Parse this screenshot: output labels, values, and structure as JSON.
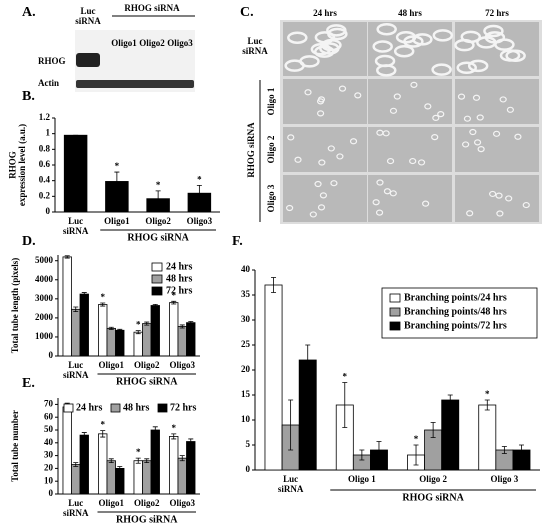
{
  "panel_labels": [
    "A.",
    "B.",
    "C.",
    "D.",
    "E.",
    "F."
  ],
  "blot": {
    "lanes": [
      "Luc siRNA",
      "Oligo1",
      "Oligo2",
      "Oligo3"
    ],
    "group": "RHOG siRNA",
    "rows": [
      "RHOG",
      "Actin"
    ]
  },
  "micrographs": {
    "columns": [
      "24 hrs",
      "48 hrs",
      "72 hrs"
    ],
    "rows": [
      "Luc siRNA",
      "Oligo 1",
      "Oligo 2",
      "Oligo 3"
    ],
    "group": "RHOG siRNA"
  },
  "chart_data": [
    {
      "type": "bar",
      "y_label": "RHOG expression level (a.u.)",
      "categories": [
        "Luc siRNA",
        "Oligo1",
        "Oligo2",
        "Oligo3"
      ],
      "group_label": "RHOG siRNA",
      "values": [
        0.98,
        0.39,
        0.17,
        0.24
      ],
      "errors": [
        0,
        0.12,
        0.1,
        0.1
      ],
      "color": "#000000",
      "ylim": [
        0,
        1.2
      ],
      "yticks": [
        0,
        0.2,
        0.4,
        0.6,
        0.8,
        1,
        1.2
      ],
      "annotations": [
        {
          "text": "*",
          "category": "Oligo1"
        },
        {
          "text": "*",
          "category": "Oligo2"
        },
        {
          "text": "*",
          "category": "Oligo3"
        }
      ]
    },
    {
      "type": "bar",
      "y_label": "Total tube length (pixels)",
      "categories": [
        "Luc siRNA",
        "Oligo1",
        "Oligo2",
        "Oligo3"
      ],
      "group_label": "RHOG siRNA",
      "series": [
        {
          "name": "24 hrs",
          "color": "#ffffff",
          "values": [
            5200,
            2700,
            1250,
            2800
          ],
          "errors": [
            60,
            80,
            80,
            70
          ]
        },
        {
          "name": "48 hrs",
          "color": "#a0a0a0",
          "values": [
            2450,
            1450,
            1700,
            1550
          ],
          "errors": [
            120,
            60,
            80,
            80
          ]
        },
        {
          "name": "72 hrs",
          "color": "#000000",
          "values": [
            3250,
            1350,
            2650,
            1750
          ],
          "errors": [
            80,
            50,
            60,
            60
          ]
        }
      ],
      "ylim": [
        0,
        5300
      ],
      "yticks": [
        0,
        1000,
        2000,
        3000,
        4000,
        5000
      ],
      "legend": "upper right",
      "annotations": [
        {
          "text": "*",
          "category": "Oligo1",
          "series": "24 hrs"
        },
        {
          "text": "*",
          "category": "Oligo2",
          "series": "24 hrs"
        },
        {
          "text": "*",
          "category": "Oligo3",
          "series": "24 hrs"
        }
      ]
    },
    {
      "type": "bar",
      "y_label": "Total tube number",
      "categories": [
        "Luc siRNA",
        "Oligo1",
        "Oligo2",
        "Oligo3"
      ],
      "group_label": "RHOG siRNA",
      "series": [
        {
          "name": "24 hrs",
          "color": "#ffffff",
          "values": [
            68,
            47,
            26,
            45
          ],
          "errors": [
            3,
            2.5,
            2,
            2
          ]
        },
        {
          "name": "48 hrs",
          "color": "#a0a0a0",
          "values": [
            23,
            26,
            26,
            28
          ],
          "errors": [
            1.5,
            1.5,
            1.5,
            2
          ]
        },
        {
          "name": "72 hrs",
          "color": "#000000",
          "values": [
            46,
            20,
            50,
            41
          ],
          "errors": [
            2,
            1.5,
            2.5,
            2
          ]
        }
      ],
      "ylim": [
        0,
        75
      ],
      "yticks": [
        0,
        10,
        20,
        30,
        40,
        50,
        60,
        70
      ],
      "legend": "top",
      "annotations": [
        {
          "text": "*",
          "category": "Oligo1",
          "series": "24 hrs"
        },
        {
          "text": "*",
          "category": "Oligo2",
          "series": "24 hrs"
        },
        {
          "text": "*",
          "category": "Oligo3",
          "series": "24 hrs"
        }
      ]
    },
    {
      "type": "bar",
      "categories": [
        "Luc siRNA",
        "Oligo 1",
        "Oligo 2",
        "Oligo 3"
      ],
      "group_label": "RHOG siRNA",
      "series": [
        {
          "name": "Branching points/24 hrs",
          "color": "#ffffff",
          "values": [
            37,
            13,
            3,
            13
          ],
          "errors": [
            1.5,
            4.5,
            2,
            1
          ]
        },
        {
          "name": "Branching points/48 hrs",
          "color": "#a0a0a0",
          "values": [
            9,
            3,
            8,
            4
          ],
          "errors": [
            5,
            1,
            1.5,
            0.7
          ]
        },
        {
          "name": "Branching points/72 hrs",
          "color": "#000000",
          "values": [
            22,
            4,
            14,
            4
          ],
          "errors": [
            3,
            1.7,
            1,
            1
          ]
        }
      ],
      "ylim": [
        0,
        40
      ],
      "yticks": [
        0,
        5,
        10,
        15,
        20,
        25,
        30,
        35,
        40
      ],
      "legend": "upper right",
      "legend_frame": true,
      "annotations": [
        {
          "text": "*",
          "category": "Oligo 1",
          "series": "Branching points/24 hrs"
        },
        {
          "text": "*",
          "category": "Oligo 2",
          "series": "Branching points/24 hrs"
        },
        {
          "text": "*",
          "category": "Oligo 3",
          "series": "Branching points/24 hrs"
        }
      ]
    }
  ]
}
